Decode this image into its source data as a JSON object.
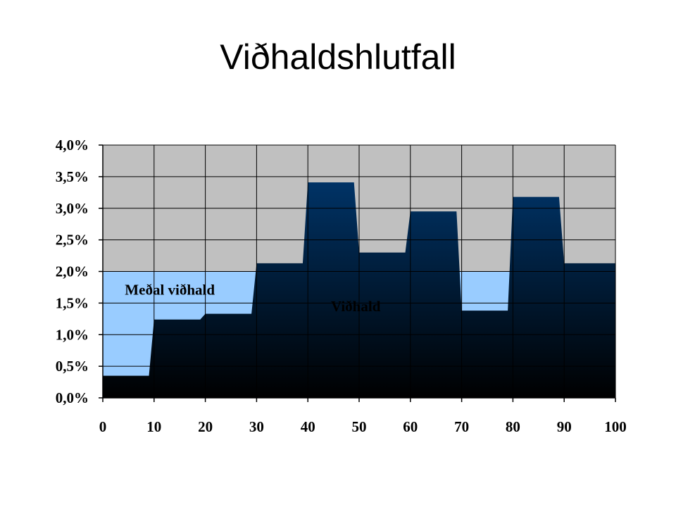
{
  "slide": {
    "title": "Viðhaldshlutfall"
  },
  "chart_data": {
    "type": "area",
    "title": "Viðhaldshlutfall",
    "xlabel": "",
    "ylabel": "",
    "xlim": [
      0,
      100
    ],
    "ylim": [
      0,
      0.04
    ],
    "x_ticks": [
      0,
      10,
      20,
      30,
      40,
      50,
      60,
      70,
      80,
      90,
      100
    ],
    "x_tick_labels": [
      "0",
      "10",
      "20",
      "30",
      "40",
      "50",
      "60",
      "70",
      "80",
      "90",
      "100"
    ],
    "y_ticks": [
      0,
      0.005,
      0.01,
      0.015,
      0.02,
      0.025,
      0.03,
      0.035,
      0.04
    ],
    "y_tick_labels": [
      "0,0%",
      "0,5%",
      "1,0%",
      "1,5%",
      "2,0%",
      "2,5%",
      "3,0%",
      "3,5%",
      "4,0%"
    ],
    "grid": true,
    "series": [
      {
        "name": "Meðal viðhald",
        "color": "#99ccff",
        "x": [
          0,
          100
        ],
        "values": [
          0.02,
          0.02
        ]
      },
      {
        "name": "Viðhald",
        "color_top": "#003366",
        "color_bottom": "#000000",
        "x": [
          0,
          9,
          10,
          19,
          20,
          29,
          30,
          39,
          40,
          49,
          50,
          59,
          60,
          69,
          70,
          79,
          80,
          89,
          90,
          100
        ],
        "values": [
          0.0035,
          0.0035,
          0.0124,
          0.0124,
          0.0133,
          0.0133,
          0.0213,
          0.0213,
          0.0341,
          0.0341,
          0.023,
          0.023,
          0.0295,
          0.0295,
          0.0138,
          0.0138,
          0.0318,
          0.0318,
          0.0213,
          0.0213
        ]
      }
    ],
    "plot_background": "#c0c0c0",
    "grid_color": "#000000"
  }
}
